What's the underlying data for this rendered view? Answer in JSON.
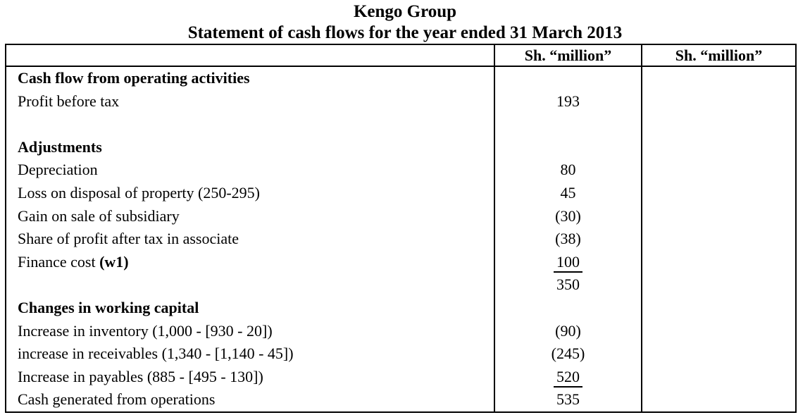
{
  "doc": {
    "title": "Kengo Group",
    "subtitle": "Statement of cash flows for the year ended 31 March 2013"
  },
  "table": {
    "headers": {
      "label_col": "",
      "amount_col_1": "Sh. “million”",
      "amount_col_2": "Sh. “million”"
    },
    "rows": [
      {
        "label": "Cash flow from operating activities",
        "bold": true,
        "value": ""
      },
      {
        "label": "Profit before tax",
        "bold": false,
        "value": "193"
      },
      {
        "label": "",
        "bold": false,
        "value": ""
      },
      {
        "label": "Adjustments",
        "bold": true,
        "value": ""
      },
      {
        "label": "Depreciation",
        "bold": false,
        "value": "80"
      },
      {
        "label": "Loss on disposal of property (250-295)",
        "bold": false,
        "value": "45"
      },
      {
        "label": "Gain on sale of subsidiary",
        "bold": false,
        "value": "(30)"
      },
      {
        "label": "Share of profit after tax in associate",
        "bold": false,
        "value": "(38)"
      },
      {
        "label": "Finance cost ",
        "label_bold": "(w1)",
        "bold": false,
        "value": "100",
        "underline": true
      },
      {
        "label": "",
        "bold": false,
        "value": "350"
      },
      {
        "label": "Changes in working capital",
        "bold": true,
        "value": ""
      },
      {
        "label": "Increase in inventory (1,000 - [930 - 20])",
        "bold": false,
        "value": "(90)"
      },
      {
        "label": "increase in receivables (1,340 - [1,140 - 45])",
        "bold": false,
        "value": "(245)"
      },
      {
        "label": "Increase in payables (885 - [495 - 130])",
        "bold": false,
        "value": "520",
        "underline": true
      },
      {
        "label": "Cash generated from operations",
        "bold": false,
        "value": "535"
      }
    ]
  },
  "colors": {
    "text": "#000000",
    "border": "#000000",
    "background": "#ffffff"
  }
}
